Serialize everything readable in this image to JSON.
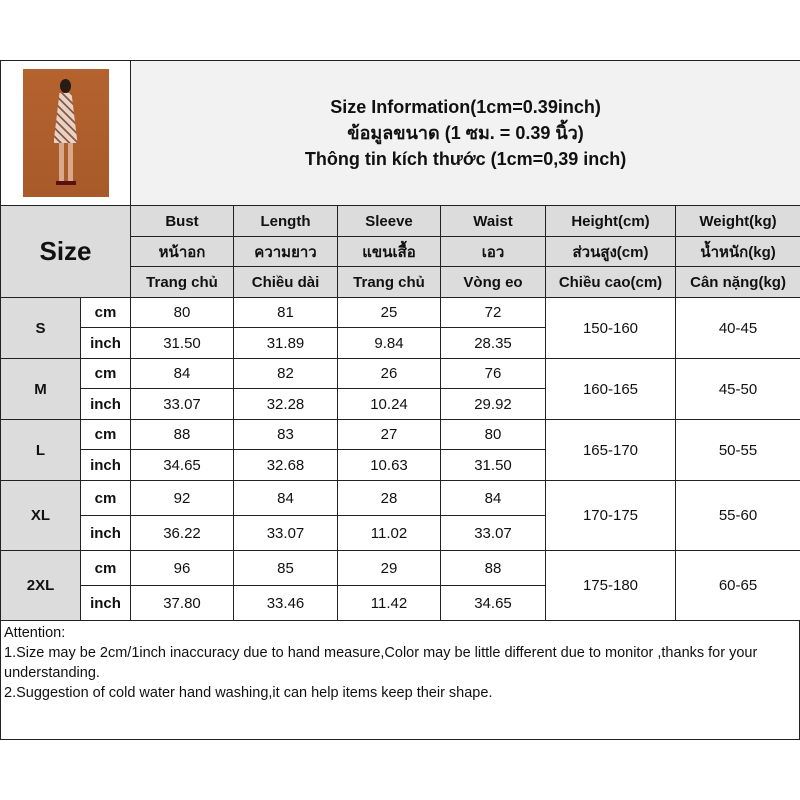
{
  "title_lines": [
    "Size Information(1cm=0.39inch)",
    "ข้อมูลขนาด (1 ซม. = 0.39 นิ้ว)",
    "Thông tin kích thước (1cm=0,39 inch)"
  ],
  "size_label": "Size",
  "headers": [
    [
      "Bust",
      "หน้าอก",
      "Trang chủ"
    ],
    [
      "Length",
      "ความยาว",
      "Chiều dài"
    ],
    [
      "Sleeve",
      "แขนเสื้อ",
      "Trang chủ"
    ],
    [
      "Waist",
      "เอว",
      "Vòng eo"
    ],
    [
      "Height(cm)",
      "ส่วนสูง(cm)",
      "Chiều cao(cm)"
    ],
    [
      "Weight(kg)",
      "น้ำหนัก(kg)",
      "Cân nặng(kg)"
    ]
  ],
  "unit_labels": [
    "cm",
    "inch"
  ],
  "rows": [
    {
      "size": "S",
      "cm": [
        "80",
        "81",
        "25",
        "72"
      ],
      "inch": [
        "31.50",
        "31.89",
        "9.84",
        "28.35"
      ],
      "height": "150-160",
      "weight": "40-45"
    },
    {
      "size": "M",
      "cm": [
        "84",
        "82",
        "26",
        "76"
      ],
      "inch": [
        "33.07",
        "32.28",
        "10.24",
        "29.92"
      ],
      "height": "160-165",
      "weight": "45-50"
    },
    {
      "size": "L",
      "cm": [
        "88",
        "83",
        "27",
        "80"
      ],
      "inch": [
        "34.65",
        "32.68",
        "10.63",
        "31.50"
      ],
      "height": "165-170",
      "weight": "50-55"
    },
    {
      "size": "XL",
      "cm": [
        "92",
        "84",
        "28",
        "84"
      ],
      "inch": [
        "36.22",
        "33.07",
        "11.02",
        "33.07"
      ],
      "height": "170-175",
      "weight": "55-60"
    },
    {
      "size": "2XL",
      "cm": [
        "96",
        "85",
        "29",
        "88"
      ],
      "inch": [
        "37.80",
        "33.46",
        "11.42",
        "34.65"
      ],
      "height": "175-180",
      "weight": "60-65"
    }
  ],
  "attention": {
    "heading": "Attention:",
    "line1": "1.Size may be 2cm/1inch inaccuracy due to hand measure,Color may be little different due to monitor ,thanks for your understanding.",
    "line2": "2.Suggestion of cold water hand washing,it can help items keep their shape."
  }
}
